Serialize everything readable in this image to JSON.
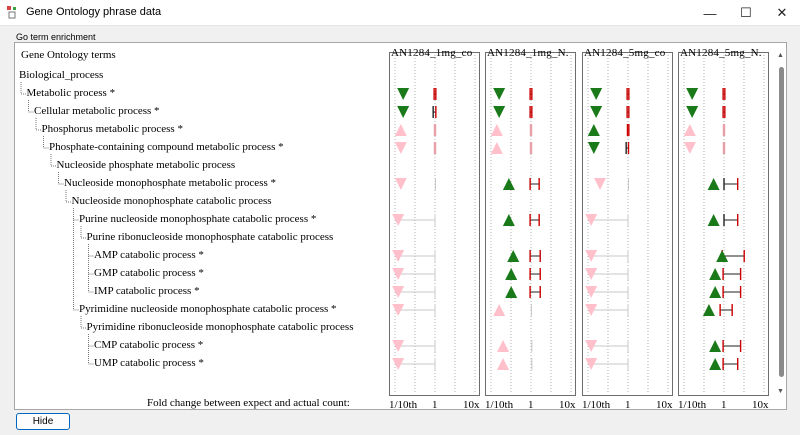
{
  "window": {
    "title": "Gene Ontology phrase data",
    "icon": "app-logo-icon"
  },
  "controls": {
    "minimize": "—",
    "maximize": "☐",
    "close": "✕"
  },
  "group": {
    "label": "Go term enrichment"
  },
  "tree": {
    "header": "Gene Ontology terms",
    "terms": [
      {
        "label": "Biological_process",
        "depth": 0
      },
      {
        "label": "Metabolic process *",
        "depth": 1
      },
      {
        "label": "Cellular metabolic process *",
        "depth": 2
      },
      {
        "label": "Phosphorus metabolic process *",
        "depth": 3
      },
      {
        "label": "Phosphate-containing compound metabolic process *",
        "depth": 4
      },
      {
        "label": "Nucleoside phosphate metabolic process",
        "depth": 5
      },
      {
        "label": "Nucleoside monophosphate metabolic process *",
        "depth": 6
      },
      {
        "label": "Nucleoside monophosphate catabolic process",
        "depth": 7
      },
      {
        "label": "Purine nucleoside monophosphate catabolic process *",
        "depth": 8
      },
      {
        "label": "Purine ribonucleoside monophosphate catabolic process",
        "depth": 9
      },
      {
        "label": "AMP catabolic process *",
        "depth": 10
      },
      {
        "label": "GMP catabolic process *",
        "depth": 10
      },
      {
        "label": "IMP catabolic process *",
        "depth": 10
      },
      {
        "label": "Pyrimidine nucleoside monophosphate catabolic process *",
        "depth": 8
      },
      {
        "label": "Pyrimidine ribonucleoside monophosphate catabolic process",
        "depth": 9
      },
      {
        "label": "CMP catabolic process *",
        "depth": 10
      },
      {
        "label": "UMP catabolic process *",
        "depth": 10
      }
    ]
  },
  "axis": {
    "caption": "Fold change between expect and actual count:",
    "ticks": [
      "1/10th",
      "1",
      "10x"
    ]
  },
  "colors": {
    "up": "#1a7a1a",
    "down": "#1a7a1a",
    "faint": "#ffc0cb",
    "bar": "#cc0000",
    "bar_faint": "#e8a0a8",
    "line": "#555555"
  },
  "chart_data": {
    "type": "scatter",
    "x_scale": "log",
    "x_range": [
      0.1,
      10
    ],
    "columns": [
      {
        "name": "AN1284_1mg_co",
        "rows": [
          null,
          {
            "dir": "down",
            "sig": true,
            "fc": 0.16,
            "lo": 0.95,
            "hi": 1.05,
            "bar": true
          },
          {
            "dir": "down",
            "sig": true,
            "fc": 0.16,
            "lo": 0.9,
            "hi": 1.05,
            "bar": true,
            "dark": true
          },
          {
            "dir": "up",
            "sig": false,
            "fc": 0.14,
            "lo": 0.97,
            "hi": 1.03,
            "bar": true
          },
          {
            "dir": "down",
            "sig": false,
            "fc": 0.14,
            "lo": 0.97,
            "hi": 1.03,
            "bar": true
          },
          null,
          {
            "dir": "down",
            "sig": false,
            "fc": 0.14,
            "lo": 0.97,
            "hi": 1.03,
            "bar": false
          },
          null,
          {
            "dir": "down",
            "sig": false,
            "fc": 0.12,
            "lo": 0.13,
            "hi": 1.0,
            "bar": false
          },
          null,
          {
            "dir": "down",
            "sig": false,
            "fc": 0.12,
            "lo": 0.13,
            "hi": 1.0,
            "bar": false
          },
          {
            "dir": "down",
            "sig": false,
            "fc": 0.12,
            "lo": 0.13,
            "hi": 1.0,
            "bar": false
          },
          {
            "dir": "down",
            "sig": false,
            "fc": 0.12,
            "lo": 0.13,
            "hi": 1.0,
            "bar": false
          },
          {
            "dir": "down",
            "sig": false,
            "fc": 0.12,
            "lo": 0.13,
            "hi": 1.0,
            "bar": false
          },
          null,
          {
            "dir": "down",
            "sig": false,
            "fc": 0.12,
            "lo": 0.13,
            "hi": 1.0,
            "bar": false
          },
          {
            "dir": "down",
            "sig": false,
            "fc": 0.12,
            "lo": 0.13,
            "hi": 1.0,
            "bar": false
          }
        ]
      },
      {
        "name": "AN1284_1mg_N.",
        "rows": [
          null,
          {
            "dir": "down",
            "sig": true,
            "fc": 0.16,
            "lo": 0.95,
            "hi": 1.05,
            "bar": true
          },
          {
            "dir": "down",
            "sig": true,
            "fc": 0.16,
            "lo": 0.95,
            "hi": 1.05,
            "bar": true
          },
          {
            "dir": "up",
            "sig": false,
            "fc": 0.14,
            "lo": 0.97,
            "hi": 1.03,
            "bar": true
          },
          {
            "dir": "up",
            "sig": false,
            "fc": 0.14,
            "lo": 0.97,
            "hi": 1.03,
            "bar": true
          },
          null,
          {
            "dir": "up",
            "sig": true,
            "fc": 0.28,
            "lo": 0.95,
            "hi": 1.6,
            "bar": true
          },
          null,
          {
            "dir": "up",
            "sig": true,
            "fc": 0.28,
            "lo": 0.95,
            "hi": 1.6,
            "bar": true
          },
          null,
          {
            "dir": "up",
            "sig": true,
            "fc": 0.36,
            "lo": 0.95,
            "hi": 1.7,
            "bar": true
          },
          {
            "dir": "up",
            "sig": true,
            "fc": 0.32,
            "lo": 0.95,
            "hi": 1.7,
            "bar": true
          },
          {
            "dir": "up",
            "sig": true,
            "fc": 0.32,
            "lo": 0.95,
            "hi": 1.7,
            "bar": true
          },
          {
            "dir": "up",
            "sig": false,
            "fc": 0.16,
            "lo": 0.97,
            "hi": 1.03,
            "bar": false
          },
          null,
          {
            "dir": "up",
            "sig": false,
            "fc": 0.2,
            "lo": 0.97,
            "hi": 1.05,
            "bar": false
          },
          {
            "dir": "up",
            "sig": false,
            "fc": 0.2,
            "lo": 0.97,
            "hi": 1.05,
            "bar": false
          }
        ]
      },
      {
        "name": "AN1284_5mg_co",
        "rows": [
          null,
          {
            "dir": "down",
            "sig": true,
            "fc": 0.16,
            "lo": 0.95,
            "hi": 1.05,
            "bar": true
          },
          {
            "dir": "down",
            "sig": true,
            "fc": 0.16,
            "lo": 0.95,
            "hi": 1.05,
            "bar": true
          },
          {
            "dir": "up",
            "sig": true,
            "fc": 0.14,
            "lo": 0.97,
            "hi": 1.05,
            "bar": true
          },
          {
            "dir": "down",
            "sig": true,
            "fc": 0.14,
            "lo": 0.9,
            "hi": 1.03,
            "bar": true,
            "dark": true
          },
          null,
          {
            "dir": "down",
            "sig": false,
            "fc": 0.2,
            "lo": 0.97,
            "hi": 1.03,
            "bar": false
          },
          null,
          {
            "dir": "down",
            "sig": false,
            "fc": 0.12,
            "lo": 0.13,
            "hi": 1.0,
            "bar": false
          },
          null,
          {
            "dir": "down",
            "sig": false,
            "fc": 0.12,
            "lo": 0.13,
            "hi": 1.0,
            "bar": false
          },
          {
            "dir": "down",
            "sig": false,
            "fc": 0.12,
            "lo": 0.13,
            "hi": 1.0,
            "bar": false
          },
          {
            "dir": "down",
            "sig": false,
            "fc": 0.12,
            "lo": 0.13,
            "hi": 1.0,
            "bar": false
          },
          {
            "dir": "down",
            "sig": false,
            "fc": 0.12,
            "lo": 0.13,
            "hi": 1.0,
            "bar": false
          },
          null,
          {
            "dir": "down",
            "sig": false,
            "fc": 0.12,
            "lo": 0.13,
            "hi": 1.0,
            "bar": false
          },
          {
            "dir": "down",
            "sig": false,
            "fc": 0.12,
            "lo": 0.13,
            "hi": 1.0,
            "bar": false
          }
        ]
      },
      {
        "name": "AN1284_5mg_N.",
        "rows": [
          null,
          {
            "dir": "down",
            "sig": true,
            "fc": 0.16,
            "lo": 0.95,
            "hi": 1.05,
            "bar": true
          },
          {
            "dir": "down",
            "sig": true,
            "fc": 0.16,
            "lo": 0.95,
            "hi": 1.05,
            "bar": true
          },
          {
            "dir": "up",
            "sig": false,
            "fc": 0.14,
            "lo": 0.97,
            "hi": 1.03,
            "bar": true
          },
          {
            "dir": "down",
            "sig": false,
            "fc": 0.14,
            "lo": 0.97,
            "hi": 1.03,
            "bar": true
          },
          null,
          {
            "dir": "up",
            "sig": true,
            "fc": 0.55,
            "lo": 1.0,
            "hi": 2.2,
            "bar": true,
            "dark": true
          },
          null,
          {
            "dir": "up",
            "sig": true,
            "fc": 0.55,
            "lo": 1.0,
            "hi": 2.2,
            "bar": true,
            "dark": true
          },
          null,
          {
            "dir": "up",
            "sig": true,
            "fc": 0.9,
            "lo": 0.9,
            "hi": 3.2,
            "bar": true
          },
          {
            "dir": "up",
            "sig": true,
            "fc": 0.6,
            "lo": 0.95,
            "hi": 2.6,
            "bar": true
          },
          {
            "dir": "up",
            "sig": true,
            "fc": 0.6,
            "lo": 0.95,
            "hi": 2.6,
            "bar": true
          },
          {
            "dir": "up",
            "sig": true,
            "fc": 0.42,
            "lo": 0.8,
            "hi": 1.6,
            "bar": true
          },
          null,
          {
            "dir": "up",
            "sig": true,
            "fc": 0.6,
            "lo": 0.95,
            "hi": 2.6,
            "bar": true
          },
          {
            "dir": "up",
            "sig": true,
            "fc": 0.6,
            "lo": 0.95,
            "hi": 2.2,
            "bar": true
          }
        ]
      }
    ]
  },
  "buttons": {
    "hide": "Hide"
  }
}
